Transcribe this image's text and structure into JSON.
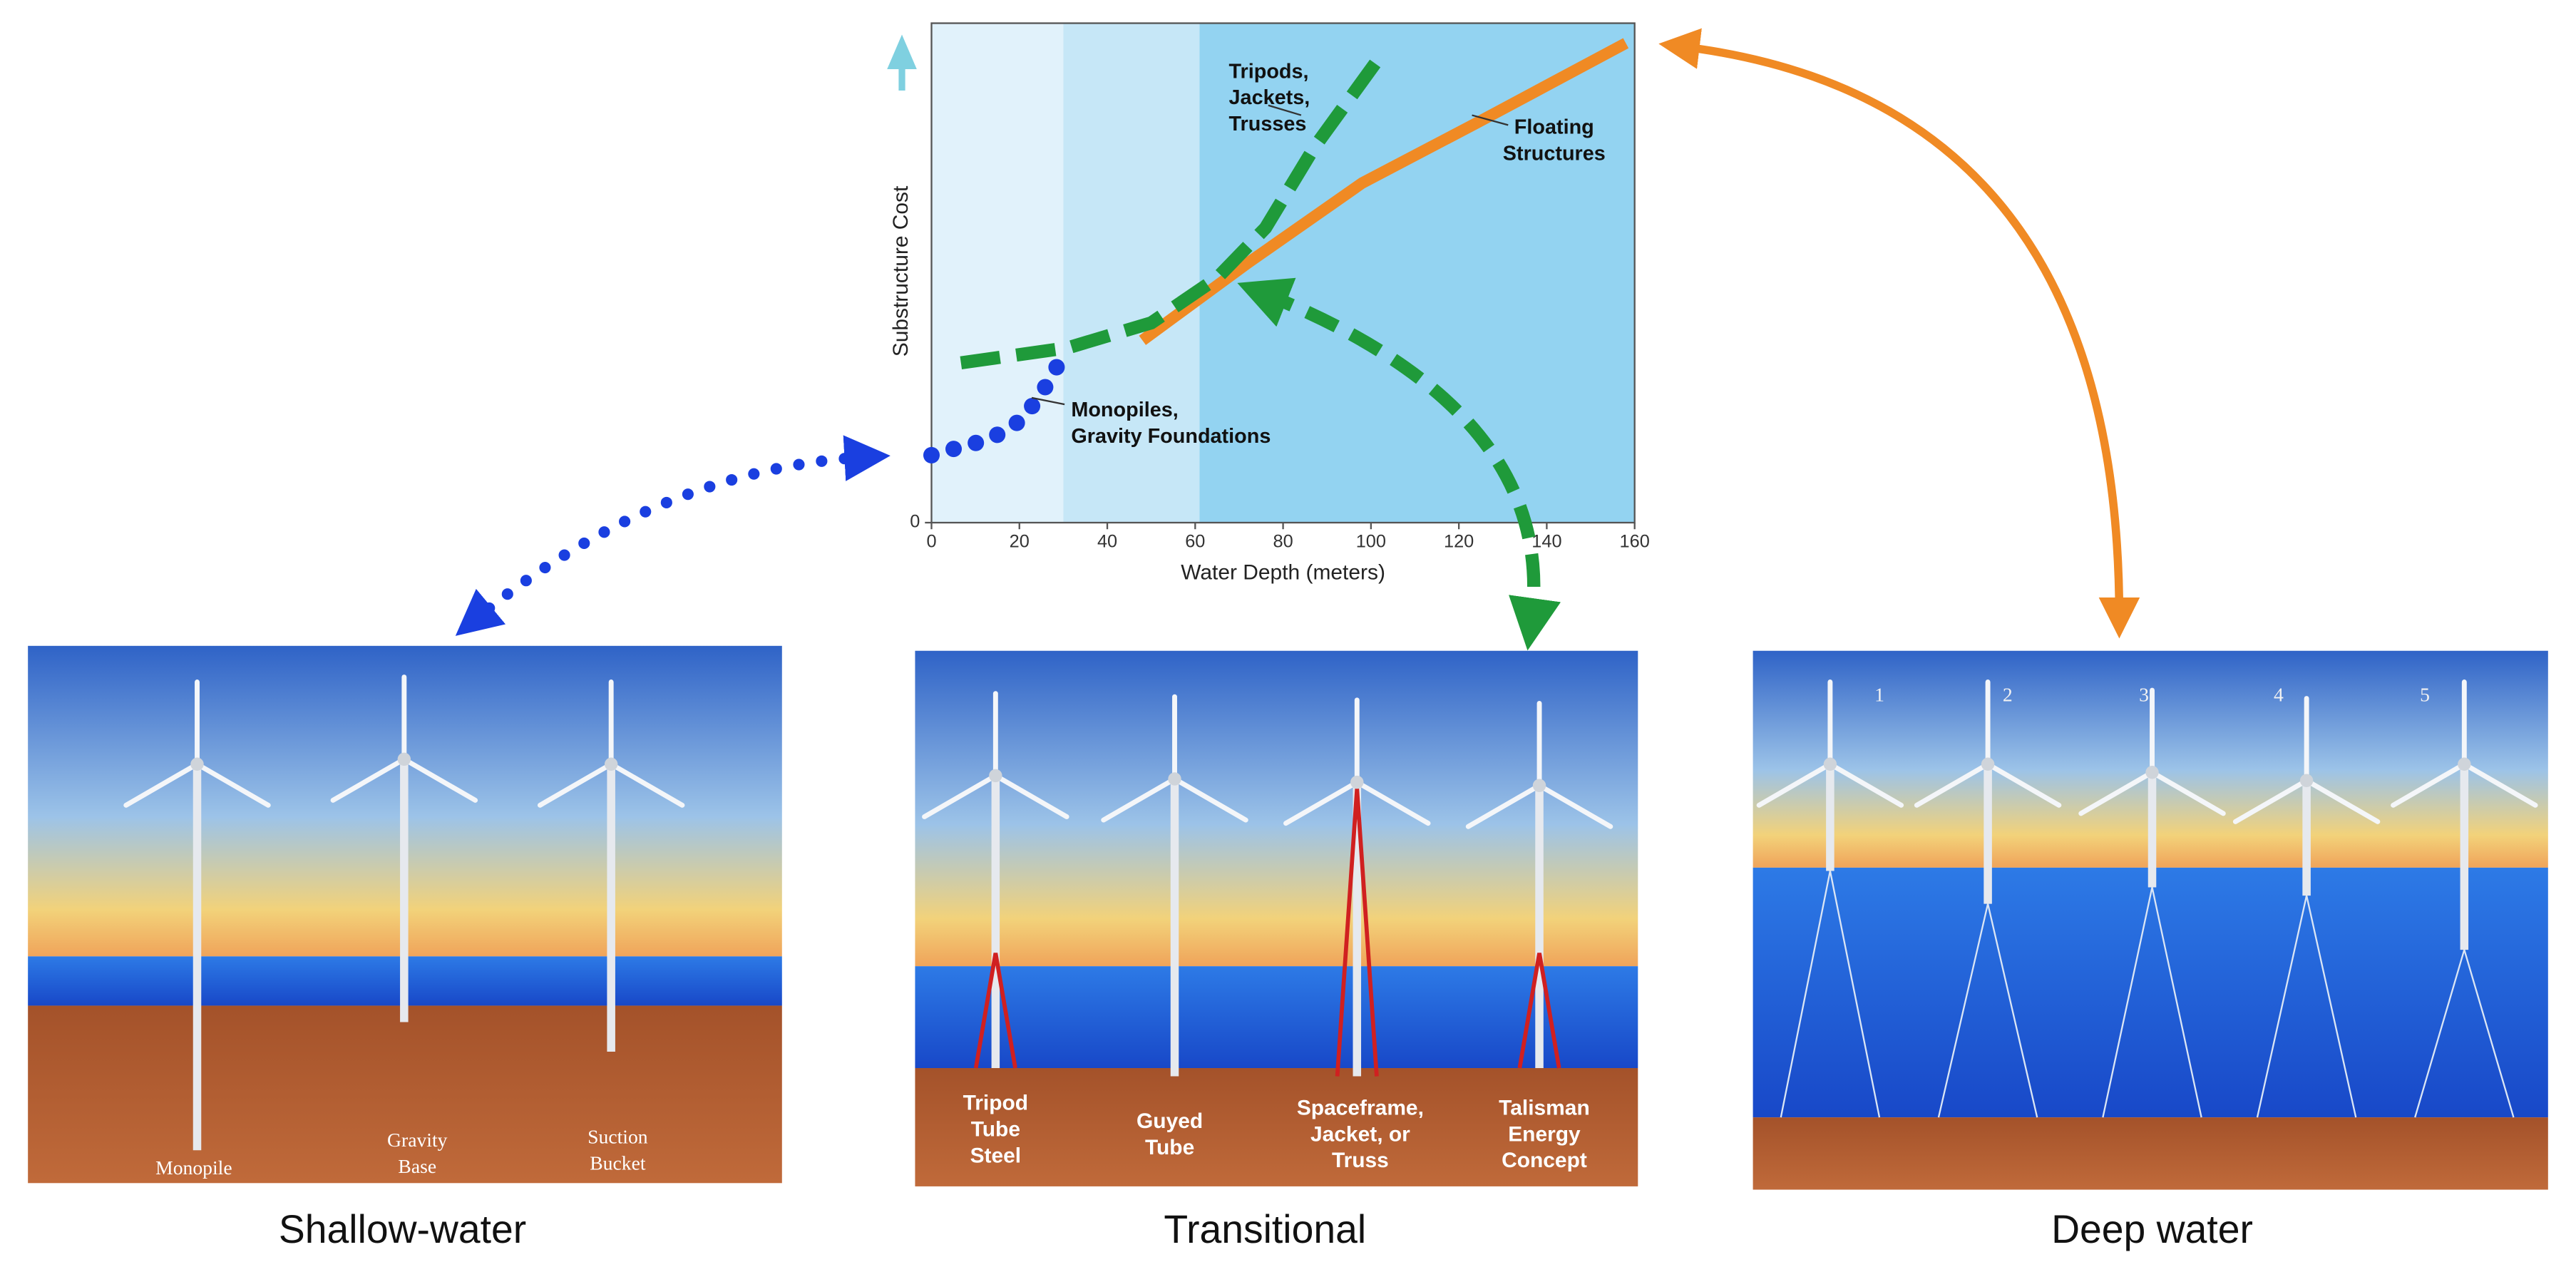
{
  "chart_data": {
    "type": "line",
    "xlabel": "Water Depth (meters)",
    "ylabel": "Substructure Cost",
    "xlim": [
      0,
      160
    ],
    "ylim": [
      0,
      100
    ],
    "xticks": [
      0,
      20,
      40,
      60,
      80,
      100,
      120,
      140,
      160
    ],
    "yticks": [
      0
    ],
    "bands": [
      {
        "from": 0,
        "to": 30,
        "color": "#e1f2fb"
      },
      {
        "from": 30,
        "to": 61,
        "color": "#c6e7f7"
      },
      {
        "from": 61,
        "to": 160,
        "color": "#93d3f1"
      }
    ],
    "series": [
      {
        "label": [
          "Monopiles,",
          "Gravity Foundations"
        ],
        "color": "#1a3fe0",
        "style": "dotted",
        "x": [
          0,
          6,
          12,
          17,
          21,
          24,
          27,
          29.5
        ],
        "values": [
          13.5,
          15,
          16.4,
          18.4,
          21,
          24.7,
          28.6,
          32.9
        ]
      },
      {
        "label": [
          "Tripods,",
          "Jackets,",
          "Trusses"
        ],
        "color": "#1f9a3a",
        "style": "dashed",
        "x": [
          6.7,
          31,
          50,
          65,
          76,
          87,
          101
        ],
        "values": [
          32,
          35,
          40,
          49,
          59,
          75,
          92
        ]
      },
      {
        "label": [
          "Floating",
          "Structures"
        ],
        "color": "#f08a24",
        "style": "solid",
        "x": [
          48,
          72,
          98,
          124,
          158
        ],
        "values": [
          36.5,
          52,
          68,
          80,
          96
        ]
      }
    ]
  },
  "panels": [
    {
      "caption": "Shallow-water",
      "labels": [
        [
          "Monopile"
        ],
        [
          "Gravity",
          "Base"
        ],
        [
          "Suction",
          "Bucket"
        ]
      ]
    },
    {
      "caption": "Transitional",
      "labels": [
        [
          "Tripod",
          "Tube",
          "Steel"
        ],
        [
          "Guyed",
          "Tube"
        ],
        [
          "Spaceframe,",
          "Jacket, or",
          "Truss"
        ],
        [
          "Talisman",
          "Energy",
          "Concept"
        ]
      ]
    },
    {
      "caption": "Deep water",
      "labels": [
        [
          "1"
        ],
        [
          "2"
        ],
        [
          "3"
        ],
        [
          "4"
        ],
        [
          "5"
        ]
      ]
    }
  ]
}
